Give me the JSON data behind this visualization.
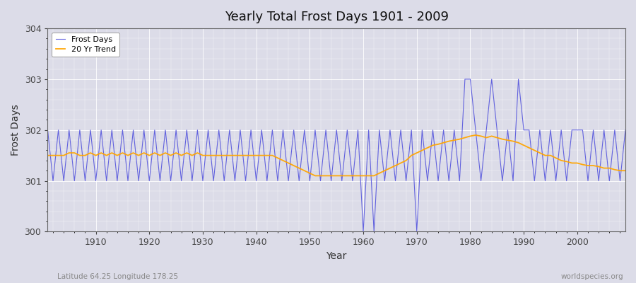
{
  "title": "Yearly Total Frost Days 1901 - 2009",
  "xlabel": "Year",
  "ylabel": "Frost Days",
  "bg_color": "#dcdce8",
  "plot_bg_color": "#dcdce8",
  "grid_color": "#ffffff",
  "line_color": "#5555dd",
  "trend_color": "#ffa500",
  "years": [
    1901,
    1902,
    1903,
    1904,
    1905,
    1906,
    1907,
    1908,
    1909,
    1910,
    1911,
    1912,
    1913,
    1914,
    1915,
    1916,
    1917,
    1918,
    1919,
    1920,
    1921,
    1922,
    1923,
    1924,
    1925,
    1926,
    1927,
    1928,
    1929,
    1930,
    1931,
    1932,
    1933,
    1934,
    1935,
    1936,
    1937,
    1938,
    1939,
    1940,
    1941,
    1942,
    1943,
    1944,
    1945,
    1946,
    1947,
    1948,
    1949,
    1950,
    1951,
    1952,
    1953,
    1954,
    1955,
    1956,
    1957,
    1958,
    1959,
    1960,
    1961,
    1962,
    1963,
    1964,
    1965,
    1966,
    1967,
    1968,
    1969,
    1970,
    1971,
    1972,
    1973,
    1974,
    1975,
    1976,
    1977,
    1978,
    1979,
    1980,
    1981,
    1982,
    1983,
    1984,
    1985,
    1986,
    1987,
    1988,
    1989,
    1990,
    1991,
    1992,
    1993,
    1994,
    1995,
    1996,
    1997,
    1998,
    1999,
    2000,
    2001,
    2002,
    2003,
    2004,
    2005,
    2006,
    2007,
    2008,
    2009
  ],
  "frost_days": [
    302,
    301,
    302,
    301,
    302,
    301,
    302,
    301,
    302,
    301,
    302,
    301,
    302,
    301,
    302,
    301,
    302,
    301,
    302,
    301,
    302,
    301,
    302,
    301,
    302,
    301,
    302,
    301,
    302,
    301,
    302,
    301,
    302,
    301,
    302,
    301,
    302,
    301,
    302,
    301,
    302,
    301,
    302,
    301,
    302,
    301,
    302,
    301,
    302,
    301,
    302,
    301,
    302,
    301,
    302,
    301,
    302,
    301,
    302,
    300,
    302,
    300,
    302,
    301,
    302,
    301,
    302,
    301,
    302,
    300,
    302,
    301,
    302,
    301,
    302,
    301,
    302,
    301,
    303,
    303,
    302,
    301,
    302,
    303,
    302,
    301,
    302,
    301,
    303,
    302,
    302,
    301,
    302,
    301,
    302,
    301,
    302,
    301,
    302,
    302,
    302,
    301,
    302,
    301,
    302,
    301,
    302,
    301,
    302
  ],
  "trend_values": [
    301.5,
    301.5,
    301.5,
    301.5,
    301.55,
    301.55,
    301.5,
    301.5,
    301.55,
    301.5,
    301.55,
    301.5,
    301.55,
    301.5,
    301.55,
    301.5,
    301.55,
    301.5,
    301.55,
    301.5,
    301.55,
    301.5,
    301.55,
    301.5,
    301.55,
    301.5,
    301.55,
    301.5,
    301.55,
    301.5,
    301.5,
    301.5,
    301.5,
    301.5,
    301.5,
    301.5,
    301.5,
    301.5,
    301.5,
    301.5,
    301.5,
    301.5,
    301.5,
    301.45,
    301.4,
    301.35,
    301.3,
    301.25,
    301.2,
    301.15,
    301.1,
    301.1,
    301.1,
    301.1,
    301.1,
    301.1,
    301.1,
    301.1,
    301.1,
    301.1,
    301.1,
    301.1,
    301.15,
    301.2,
    301.25,
    301.3,
    301.35,
    301.4,
    301.5,
    301.55,
    301.6,
    301.65,
    301.7,
    301.72,
    301.75,
    301.78,
    301.8,
    301.82,
    301.85,
    301.88,
    301.9,
    301.88,
    301.85,
    301.88,
    301.85,
    301.82,
    301.8,
    301.78,
    301.75,
    301.7,
    301.65,
    301.6,
    301.55,
    301.5,
    301.5,
    301.45,
    301.4,
    301.38,
    301.35,
    301.35,
    301.32,
    301.3,
    301.3,
    301.28,
    301.25,
    301.25,
    301.22,
    301.2,
    301.2
  ],
  "ylim": [
    300,
    304
  ],
  "yticks": [
    300,
    301,
    302,
    303,
    304
  ],
  "xlim": [
    1901,
    2009
  ],
  "xticks": [
    1910,
    1920,
    1930,
    1940,
    1950,
    1960,
    1970,
    1980,
    1990,
    2000
  ],
  "legend_labels": [
    "Frost Days",
    "20 Yr Trend"
  ],
  "footnote_left": "Latitude 64.25 Longitude 178.25",
  "footnote_right": "worldspecies.org"
}
